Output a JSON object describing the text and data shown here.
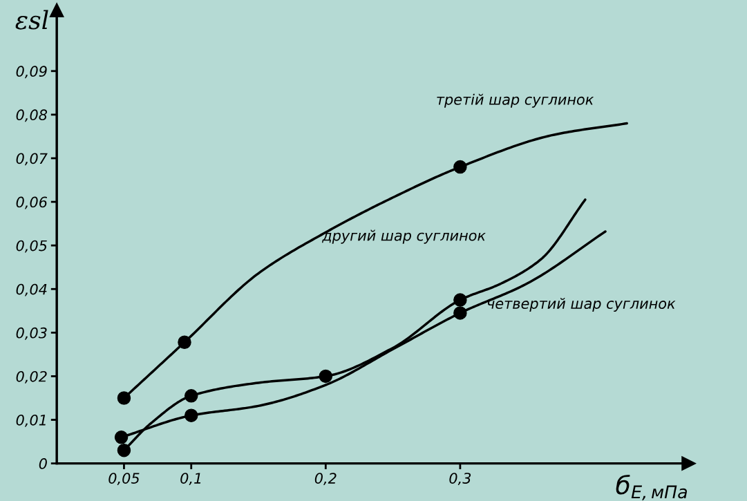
{
  "chart_data": {
    "type": "line",
    "xlabel": "б$_{E,мПа}$",
    "ylabel": "εsl",
    "xlim": [
      0,
      0.47
    ],
    "ylim": [
      0,
      0.104
    ],
    "xticks": [
      {
        "value": 0.05,
        "label": "0,05"
      },
      {
        "value": 0.1,
        "label": "0,1"
      },
      {
        "value": 0.2,
        "label": "0,2"
      },
      {
        "value": 0.3,
        "label": "0,3"
      }
    ],
    "yticks": [
      0,
      {
        "value": 0.01,
        "label": "0,01"
      },
      {
        "value": 0.02,
        "label": "0,02"
      },
      {
        "value": 0.03,
        "label": "0,03"
      },
      {
        "value": 0.04,
        "label": "0,04"
      },
      {
        "value": 0.05,
        "label": "0,05"
      },
      {
        "value": 0.06,
        "label": "0,06"
      },
      {
        "value": 0.07,
        "label": "0,07"
      },
      {
        "value": 0.08,
        "label": "0,08"
      },
      {
        "value": 0.09,
        "label": "0,09"
      }
    ],
    "grid": false,
    "line_style": "solid",
    "series": [
      {
        "type": "line",
        "color": "#000000",
        "marker": "none",
        "x": [
          0.05,
          0.095,
          0.15,
          0.2,
          0.25,
          0.3,
          0.37,
          0.424
        ],
        "values": [
          0.015,
          0.0278,
          0.0436,
          0.053,
          0.061,
          0.068,
          0.0754,
          0.078
        ]
      },
      {
        "type": "scatter",
        "color": "#000000",
        "marker": "circle",
        "x": [
          0.05,
          0.095,
          0.3
        ],
        "values": [
          0.015,
          0.0278,
          0.068
        ]
      },
      {
        "type": "line",
        "color": "#000000",
        "marker": "none",
        "x": [
          0.05,
          0.07,
          0.1,
          0.15,
          0.2,
          0.25,
          0.3,
          0.33,
          0.36,
          0.393
        ],
        "values": [
          0.003,
          0.0092,
          0.0155,
          0.0185,
          0.02,
          0.0265,
          0.0375,
          0.0412,
          0.0468,
          0.0605
        ]
      },
      {
        "type": "scatter",
        "color": "#000000",
        "marker": "circle",
        "x": [
          0.05,
          0.1,
          0.2,
          0.3
        ],
        "values": [
          0.003,
          0.0155,
          0.02,
          0.0375
        ]
      },
      {
        "type": "line",
        "color": "#000000",
        "marker": "none",
        "x": [
          0.048,
          0.1,
          0.15,
          0.2,
          0.25,
          0.3,
          0.35,
          0.408
        ],
        "values": [
          0.006,
          0.011,
          0.0132,
          0.018,
          0.0262,
          0.0345,
          0.0413,
          0.0532
        ]
      },
      {
        "type": "scatter",
        "color": "#000000",
        "marker": "circle",
        "x": [
          0.048,
          0.1,
          0.3
        ],
        "values": [
          0.006,
          0.011,
          0.0345
        ]
      }
    ],
    "annotations": [
      "третій шар суглинок",
      "другий шар суглинок",
      "четвертий шар суглинок"
    ]
  }
}
